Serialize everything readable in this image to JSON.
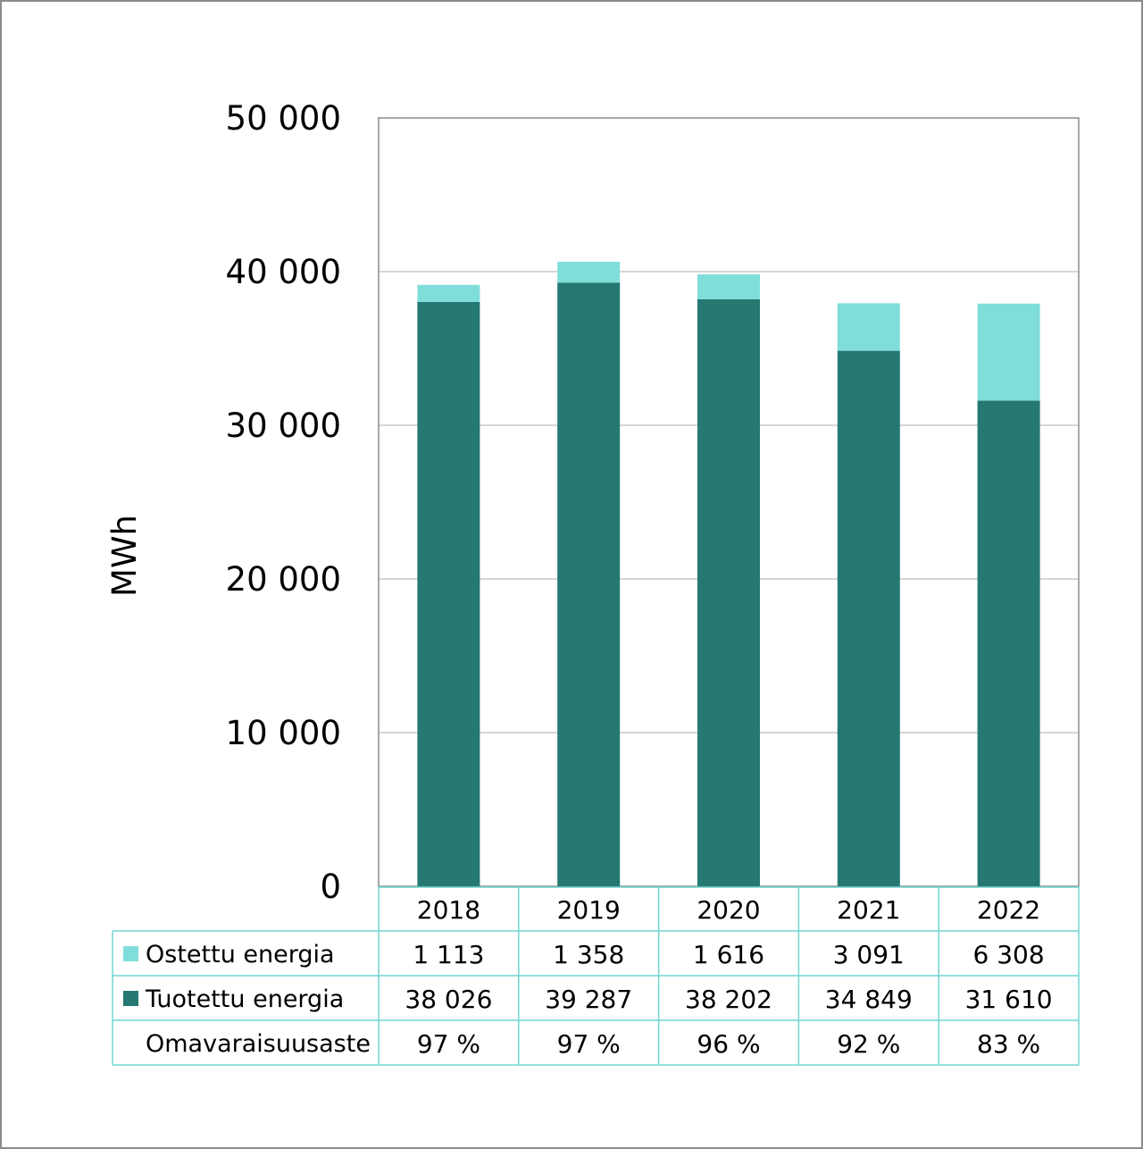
{
  "chart_data": {
    "type": "bar",
    "stacked": true,
    "categories": [
      "2018",
      "2019",
      "2020",
      "2021",
      "2022"
    ],
    "series": [
      {
        "name": "Tuotettu energia",
        "color": "#267873",
        "values": [
          38026,
          39287,
          38202,
          34849,
          31610
        ],
        "labels": [
          "38 026",
          "39 287",
          "38 202",
          "34 849",
          "31 610"
        ]
      },
      {
        "name": "Ostettu energia",
        "color": "#80deda",
        "values": [
          1113,
          1358,
          1616,
          3091,
          6308
        ],
        "labels": [
          "1 113",
          "1 358",
          "1 616",
          "3 091",
          "6 308"
        ]
      }
    ],
    "extra_rows": [
      {
        "name": "Omavaraisuusaste",
        "labels": [
          "97 %",
          "97 %",
          "96 %",
          "92 %",
          "83 %"
        ]
      }
    ],
    "ylabel": "MWh",
    "ylim": [
      0,
      50000
    ],
    "yticks": [
      0,
      10000,
      20000,
      30000,
      40000,
      50000
    ],
    "ytick_labels": [
      "0",
      "10 000",
      "20 000",
      "30 000",
      "40 000",
      "50 000"
    ],
    "grid": true,
    "legend": "data-table"
  },
  "colors": {
    "gridline": "#c8c8c8",
    "plot_border": "#8c8c8c",
    "table_border": "#70d6d2"
  }
}
